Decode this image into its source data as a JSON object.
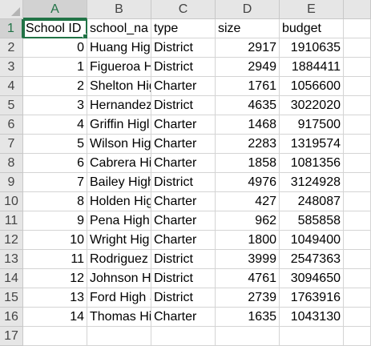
{
  "columns": [
    "A",
    "B",
    "C",
    "D",
    "E"
  ],
  "row_numbers": [
    "1",
    "2",
    "3",
    "4",
    "5",
    "6",
    "7",
    "8",
    "9",
    "10",
    "11",
    "12",
    "13",
    "14",
    "15",
    "16",
    "17"
  ],
  "header_row": [
    "School ID",
    "school_na",
    "type",
    "size",
    "budget"
  ],
  "rows": [
    [
      "0",
      "Huang Higl",
      "District",
      "2917",
      "1910635"
    ],
    [
      "1",
      "Figueroa H",
      "District",
      "2949",
      "1884411"
    ],
    [
      "2",
      "Shelton Hig",
      "Charter",
      "1761",
      "1056600"
    ],
    [
      "3",
      "Hernandez",
      "District",
      "4635",
      "3022020"
    ],
    [
      "4",
      "Griffin Higl",
      "Charter",
      "1468",
      "917500"
    ],
    [
      "5",
      "Wilson Hig",
      "Charter",
      "2283",
      "1319574"
    ],
    [
      "6",
      "Cabrera Hi",
      "Charter",
      "1858",
      "1081356"
    ],
    [
      "7",
      "Bailey High",
      "District",
      "4976",
      "3124928"
    ],
    [
      "8",
      "Holden Hig",
      "Charter",
      "427",
      "248087"
    ],
    [
      "9",
      "Pena High",
      "Charter",
      "962",
      "585858"
    ],
    [
      "10",
      "Wright Hig",
      "Charter",
      "1800",
      "1049400"
    ],
    [
      "11",
      "Rodriguez",
      "District",
      "3999",
      "2547363"
    ],
    [
      "12",
      "Johnson H",
      "District",
      "4761",
      "3094650"
    ],
    [
      "13",
      "Ford High S",
      "District",
      "2739",
      "1763916"
    ],
    [
      "14",
      "Thomas Hi",
      "Charter",
      "1635",
      "1043130"
    ]
  ]
}
